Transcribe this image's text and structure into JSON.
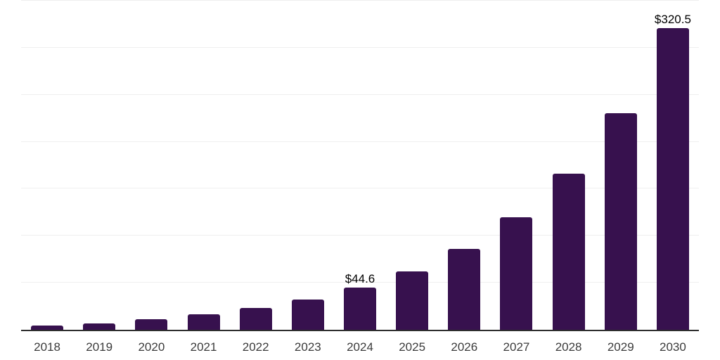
{
  "chart_data": {
    "type": "bar",
    "title": "",
    "xlabel": "",
    "ylabel": "",
    "categories": [
      "2018",
      "2019",
      "2020",
      "2021",
      "2022",
      "2023",
      "2024",
      "2025",
      "2026",
      "2027",
      "2028",
      "2029",
      "2030"
    ],
    "values": [
      4.2,
      6.5,
      11.0,
      16.2,
      23.2,
      32.1,
      44.6,
      61.9,
      86.0,
      119.4,
      165.9,
      230.4,
      320.5
    ],
    "data_labels": [
      "",
      "",
      "",
      "",
      "",
      "",
      "$44.6",
      "",
      "",
      "",
      "",
      "",
      "$320.5"
    ],
    "ylim": [
      0,
      350
    ],
    "gridline_values": [
      50,
      100,
      150,
      200,
      250,
      300,
      350
    ],
    "grid": "horizontal",
    "legend": "none",
    "colors": {
      "bar": "#37114E",
      "gridline": "#efefef",
      "axis_line": "#2e2e2e",
      "tick_label": "#3b3b3b",
      "data_label": "#000000",
      "background": "#ffffff"
    }
  }
}
